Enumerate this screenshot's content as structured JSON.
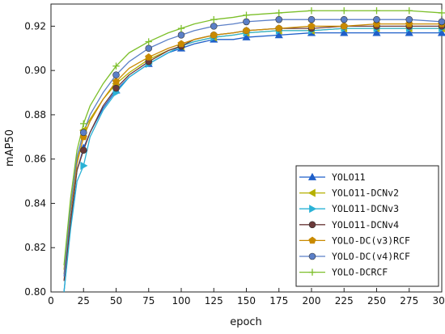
{
  "chart_data": {
    "type": "line",
    "xlabel": "epoch",
    "ylabel": "mAP50",
    "xlim": [
      0,
      300
    ],
    "ylim": [
      0.8,
      0.93
    ],
    "x_ticks": [
      0,
      25,
      50,
      75,
      100,
      125,
      150,
      175,
      200,
      225,
      250,
      275,
      300
    ],
    "y_ticks": [
      0.8,
      0.82,
      0.84,
      0.86,
      0.88,
      0.9,
      0.92
    ],
    "grid": false,
    "legend_position": "bottom-right",
    "x": [
      10,
      15,
      20,
      25,
      30,
      40,
      50,
      60,
      75,
      90,
      100,
      110,
      125,
      140,
      150,
      175,
      200,
      225,
      250,
      275,
      300
    ],
    "series": [
      {
        "name": "YOLO11",
        "color": "#1f5fc9",
        "marker": "triangle-up",
        "values": [
          0.8,
          0.83,
          0.855,
          0.865,
          0.872,
          0.883,
          0.891,
          0.897,
          0.903,
          0.908,
          0.91,
          0.912,
          0.914,
          0.914,
          0.915,
          0.916,
          0.917,
          0.917,
          0.917,
          0.917,
          0.917
        ]
      },
      {
        "name": "YOLO11-DCNv2",
        "color": "#b5b000",
        "marker": "triangle-left",
        "values": [
          0.81,
          0.838,
          0.86,
          0.873,
          0.878,
          0.887,
          0.894,
          0.899,
          0.905,
          0.909,
          0.911,
          0.913,
          0.915,
          0.916,
          0.917,
          0.918,
          0.918,
          0.919,
          0.919,
          0.919,
          0.919
        ]
      },
      {
        "name": "YOLO11-DCNv3",
        "color": "#2ab2d6",
        "marker": "triangle-right",
        "values": [
          0.8,
          0.828,
          0.85,
          0.857,
          0.87,
          0.882,
          0.89,
          0.897,
          0.903,
          0.908,
          0.911,
          0.913,
          0.915,
          0.916,
          0.917,
          0.918,
          0.918,
          0.919,
          0.919,
          0.919,
          0.919
        ]
      },
      {
        "name": "YOLO11-DCNv4",
        "color": "#6b3a3a",
        "marker": "circle",
        "values": [
          0.805,
          0.832,
          0.855,
          0.864,
          0.872,
          0.884,
          0.892,
          0.898,
          0.904,
          0.909,
          0.911,
          0.914,
          0.916,
          0.917,
          0.918,
          0.919,
          0.919,
          0.92,
          0.92,
          0.92,
          0.92
        ]
      },
      {
        "name": "YOLO-DC(v3)RCF",
        "color": "#c98a00",
        "marker": "pentagon",
        "values": [
          0.808,
          0.836,
          0.858,
          0.87,
          0.877,
          0.887,
          0.895,
          0.901,
          0.906,
          0.91,
          0.912,
          0.914,
          0.916,
          0.917,
          0.918,
          0.919,
          0.92,
          0.92,
          0.921,
          0.921,
          0.921
        ]
      },
      {
        "name": "YOLO-DC(v4)RCF",
        "color": "#5b7fc7",
        "marker": "circle",
        "values": [
          0.807,
          0.838,
          0.861,
          0.872,
          0.88,
          0.89,
          0.898,
          0.904,
          0.91,
          0.914,
          0.916,
          0.918,
          0.92,
          0.921,
          0.922,
          0.923,
          0.923,
          0.923,
          0.923,
          0.923,
          0.922
        ]
      },
      {
        "name": "YOLO-DCRCF",
        "color": "#7cbf2a",
        "marker": "plus",
        "values": [
          0.812,
          0.842,
          0.864,
          0.876,
          0.884,
          0.894,
          0.902,
          0.908,
          0.913,
          0.917,
          0.919,
          0.921,
          0.923,
          0.924,
          0.925,
          0.926,
          0.927,
          0.927,
          0.927,
          0.927,
          0.926
        ]
      }
    ]
  }
}
